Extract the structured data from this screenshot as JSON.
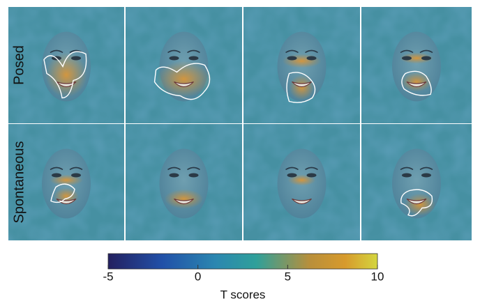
{
  "row_labels": [
    "Posed",
    "Spontaneous"
  ],
  "colorbar": {
    "label": "T scores",
    "lim": [
      -5,
      10
    ],
    "ticks": [
      -5,
      0,
      5,
      10
    ]
  }
}
